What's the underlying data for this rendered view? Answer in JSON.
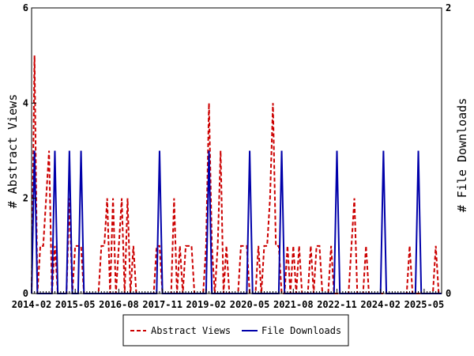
{
  "chart_data": {
    "type": "line",
    "title": "",
    "xlabel": "",
    "ylabel_left": "# Abstract Views",
    "ylabel_right": "# File Downloads",
    "x_range": [
      "2014-02",
      "2025-11"
    ],
    "x_ticks": [
      "2014-02",
      "2015-05",
      "2016-08",
      "2017-11",
      "2019-02",
      "2020-05",
      "2021-08",
      "2022-11",
      "2024-02",
      "2025-05"
    ],
    "ylim_left": [
      0,
      6
    ],
    "yticks_left": [
      0,
      2,
      4,
      6
    ],
    "ylim_right": [
      0,
      2
    ],
    "yticks_right": [
      0,
      2
    ],
    "grid": false,
    "legend_position": "bottom-center",
    "series": [
      {
        "name": "Abstract Views",
        "axis": "left",
        "color": "#cc0000",
        "style": "dashed",
        "points": [
          [
            "2014-02",
            0
          ],
          [
            "2014-03",
            5
          ],
          [
            "2014-04",
            0
          ],
          [
            "2014-05",
            1
          ],
          [
            "2014-06",
            1
          ],
          [
            "2014-07",
            2
          ],
          [
            "2014-08",
            3
          ],
          [
            "2014-09",
            0
          ],
          [
            "2014-10",
            1
          ],
          [
            "2014-11",
            0
          ],
          [
            "2015-03",
            2
          ],
          [
            "2015-04",
            0
          ],
          [
            "2015-05",
            1
          ],
          [
            "2015-06",
            1
          ],
          [
            "2015-07",
            1
          ],
          [
            "2015-08",
            0
          ],
          [
            "2016-02",
            1
          ],
          [
            "2016-03",
            1
          ],
          [
            "2016-04",
            2
          ],
          [
            "2016-05",
            0
          ],
          [
            "2016-06",
            2
          ],
          [
            "2016-07",
            0
          ],
          [
            "2016-08",
            1
          ],
          [
            "2016-09",
            2
          ],
          [
            "2016-10",
            0
          ],
          [
            "2016-11",
            2
          ],
          [
            "2016-12",
            0
          ],
          [
            "2017-01",
            1
          ],
          [
            "2017-02",
            0
          ],
          [
            "2017-03",
            0
          ],
          [
            "2017-09",
            1
          ],
          [
            "2017-10",
            1
          ],
          [
            "2017-11",
            0
          ],
          [
            "2018-03",
            2
          ],
          [
            "2018-04",
            0
          ],
          [
            "2018-05",
            1
          ],
          [
            "2018-06",
            0
          ],
          [
            "2018-07",
            1
          ],
          [
            "2018-08",
            1
          ],
          [
            "2018-09",
            1
          ],
          [
            "2018-10",
            0
          ],
          [
            "2019-02",
            1
          ],
          [
            "2019-03",
            4
          ],
          [
            "2019-04",
            1
          ],
          [
            "2019-05",
            0
          ],
          [
            "2019-06",
            1
          ],
          [
            "2019-07",
            3
          ],
          [
            "2019-08",
            0
          ],
          [
            "2019-09",
            1
          ],
          [
            "2019-10",
            0
          ],
          [
            "2020-02",
            1
          ],
          [
            "2020-03",
            1
          ],
          [
            "2020-04",
            1
          ],
          [
            "2020-05",
            0
          ],
          [
            "2020-08",
            1
          ],
          [
            "2020-09",
            0
          ],
          [
            "2020-10",
            1
          ],
          [
            "2020-11",
            1
          ],
          [
            "2020-12",
            2
          ],
          [
            "2021-01",
            4
          ],
          [
            "2021-02",
            1
          ],
          [
            "2021-03",
            1
          ],
          [
            "2021-04",
            0
          ],
          [
            "2021-06",
            1
          ],
          [
            "2021-07",
            0
          ],
          [
            "2021-08",
            1
          ],
          [
            "2021-09",
            0
          ],
          [
            "2021-10",
            1
          ],
          [
            "2021-11",
            0
          ],
          [
            "2022-02",
            1
          ],
          [
            "2022-03",
            0
          ],
          [
            "2022-04",
            1
          ],
          [
            "2022-05",
            1
          ],
          [
            "2022-06",
            0
          ],
          [
            "2022-09",
            1
          ],
          [
            "2022-10",
            0
          ],
          [
            "2022-11",
            0
          ],
          [
            "2023-04",
            1
          ],
          [
            "2023-05",
            2
          ],
          [
            "2023-06",
            0
          ],
          [
            "2023-09",
            1
          ],
          [
            "2023-10",
            0
          ],
          [
            "2024-12",
            1
          ],
          [
            "2025-01",
            0
          ],
          [
            "2025-09",
            1
          ],
          [
            "2025-10",
            0
          ]
        ]
      },
      {
        "name": "File Downloads",
        "axis": "right",
        "color": "#0000aa",
        "style": "solid",
        "points": [
          [
            "2014-02",
            0
          ],
          [
            "2014-03",
            1
          ],
          [
            "2014-04",
            0
          ],
          [
            "2014-10",
            1
          ],
          [
            "2014-11",
            0
          ],
          [
            "2015-02",
            0
          ],
          [
            "2015-03",
            1
          ],
          [
            "2015-04",
            0
          ],
          [
            "2015-06",
            0
          ],
          [
            "2015-07",
            1
          ],
          [
            "2015-08",
            0
          ],
          [
            "2017-09",
            0
          ],
          [
            "2017-10",
            1
          ],
          [
            "2017-11",
            0
          ],
          [
            "2019-02",
            0
          ],
          [
            "2019-03",
            1
          ],
          [
            "2019-04",
            0
          ],
          [
            "2020-04",
            0
          ],
          [
            "2020-05",
            1
          ],
          [
            "2020-06",
            0
          ],
          [
            "2021-03",
            0
          ],
          [
            "2021-04",
            1
          ],
          [
            "2021-05",
            0
          ],
          [
            "2022-10",
            0
          ],
          [
            "2022-11",
            1
          ],
          [
            "2022-12",
            0
          ],
          [
            "2024-02",
            0
          ],
          [
            "2024-03",
            1
          ],
          [
            "2024-04",
            0
          ],
          [
            "2025-02",
            0
          ],
          [
            "2025-03",
            1
          ],
          [
            "2025-04",
            0
          ]
        ]
      }
    ]
  }
}
